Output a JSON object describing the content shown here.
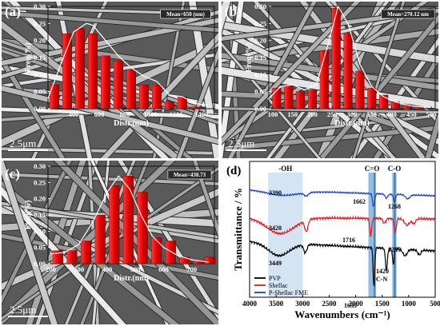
{
  "panels": [
    {
      "label": "(a)",
      "scalebar": "2.5μm",
      "mean_label": "Mean=650 (nm)",
      "chart_data": {
        "type": "bar",
        "xlabel": "Distr.(nm)",
        "ylabel": "Freq(%)",
        "xticks": [
          400,
          600,
          800,
          1000,
          1200,
          1400
        ],
        "yticks": [
          0.0,
          0.05,
          0.1,
          0.15,
          0.2,
          0.25,
          0.3
        ],
        "xlim": [
          200,
          1500
        ],
        "ylim": [
          0,
          0.3
        ],
        "x": [
          250,
          350,
          450,
          550,
          650,
          750,
          850,
          950,
          1050,
          1150,
          1250,
          1350
        ],
        "values": [
          0.07,
          0.22,
          0.235,
          0.22,
          0.155,
          0.14,
          0.115,
          0.07,
          0.07,
          0.02,
          0.035,
          0.005
        ],
        "curve": [
          [
            200,
            0.03
          ],
          [
            300,
            0.13
          ],
          [
            400,
            0.225
          ],
          [
            500,
            0.25
          ],
          [
            550,
            0.245
          ],
          [
            650,
            0.2
          ],
          [
            750,
            0.155
          ],
          [
            850,
            0.12
          ],
          [
            950,
            0.095
          ],
          [
            1050,
            0.08
          ],
          [
            1150,
            0.04
          ],
          [
            1250,
            0.035
          ],
          [
            1350,
            0.015
          ],
          [
            1450,
            0.01
          ]
        ]
      }
    },
    {
      "label": "(b)",
      "scalebar": "2.5μm",
      "mean_label": "Mean=270.12 nm",
      "chart_data": {
        "type": "bar",
        "xlabel": "Distr.(nm)",
        "ylabel": "Freq(%)",
        "xticks": [
          100,
          150,
          200,
          250,
          300,
          350,
          400,
          450,
          500
        ],
        "yticks": [
          0.0,
          0.05,
          0.1,
          0.15,
          0.2,
          0.25,
          0.3
        ],
        "xlim": [
          90,
          510
        ],
        "ylim": [
          0,
          0.3
        ],
        "x": [
          110,
          140,
          170,
          200,
          230,
          260,
          290,
          320,
          350,
          380,
          410,
          440,
          470
        ],
        "values": [
          0.06,
          0.07,
          0.05,
          0.055,
          0.17,
          0.295,
          0.22,
          0.11,
          0.06,
          0.04,
          0.02,
          0.01,
          0.005
        ],
        "curve": [
          [
            90,
            0.03
          ],
          [
            120,
            0.065
          ],
          [
            150,
            0.07
          ],
          [
            180,
            0.055
          ],
          [
            210,
            0.07
          ],
          [
            240,
            0.19
          ],
          [
            265,
            0.3
          ],
          [
            290,
            0.25
          ],
          [
            320,
            0.13
          ],
          [
            350,
            0.065
          ],
          [
            380,
            0.035
          ],
          [
            410,
            0.02
          ],
          [
            450,
            0.008
          ],
          [
            500,
            0.003
          ]
        ]
      }
    },
    {
      "label": "(c)",
      "scalebar": "2.5μm",
      "mean_label": "Mean=438.73",
      "chart_data": {
        "type": "bar",
        "xlabel": "Distr.(nm)",
        "ylabel": "Freq(%)",
        "xticks": [
          200,
          300,
          400,
          500,
          600,
          700
        ],
        "yticks": [
          0.0,
          0.05,
          0.1,
          0.15,
          0.2,
          0.25,
          0.3
        ],
        "xlim": [
          190,
          780
        ],
        "ylim": [
          0,
          0.3
        ],
        "x": [
          225,
          275,
          325,
          375,
          425,
          475,
          525,
          575,
          625,
          675,
          725,
          765
        ],
        "values": [
          0.04,
          0.04,
          0.07,
          0.15,
          0.24,
          0.27,
          0.22,
          0.08,
          0.07,
          0.02,
          0.01,
          0.02
        ],
        "curve": [
          [
            200,
            0.03
          ],
          [
            250,
            0.035
          ],
          [
            300,
            0.06
          ],
          [
            350,
            0.13
          ],
          [
            400,
            0.22
          ],
          [
            440,
            0.27
          ],
          [
            480,
            0.23
          ],
          [
            520,
            0.15
          ],
          [
            560,
            0.085
          ],
          [
            600,
            0.05
          ],
          [
            650,
            0.025
          ],
          [
            700,
            0.012
          ],
          [
            760,
            0.005
          ]
        ]
      }
    }
  ],
  "ftir": {
    "label": "(d)",
    "chart_data": {
      "type": "line",
      "xlabel": "Wavenumbers (cm⁻¹)",
      "ylabel": "Transmittance / %",
      "xticks": [
        4000,
        3500,
        3000,
        2500,
        2000,
        1500,
        1000,
        500
      ],
      "xlim": [
        4000,
        500
      ],
      "band_labels": [
        "-OH",
        "C=O",
        "C-O"
      ],
      "bands": [
        [
          3650,
          3000
        ],
        [
          1760,
          1620
        ],
        [
          1310,
          1230
        ]
      ],
      "annotations": [
        "3390",
        "1662",
        "1268",
        "3420",
        "1716",
        "1255",
        "3449",
        "1420",
        "C-N",
        "1655"
      ],
      "legend": [
        "PVP",
        "Shellac",
        "P-Shellac FME"
      ],
      "colors": {
        "PVP": "#000000",
        "Shellac": "#e8191a",
        "P-Shellac FME": "#1b3fd8"
      }
    }
  }
}
